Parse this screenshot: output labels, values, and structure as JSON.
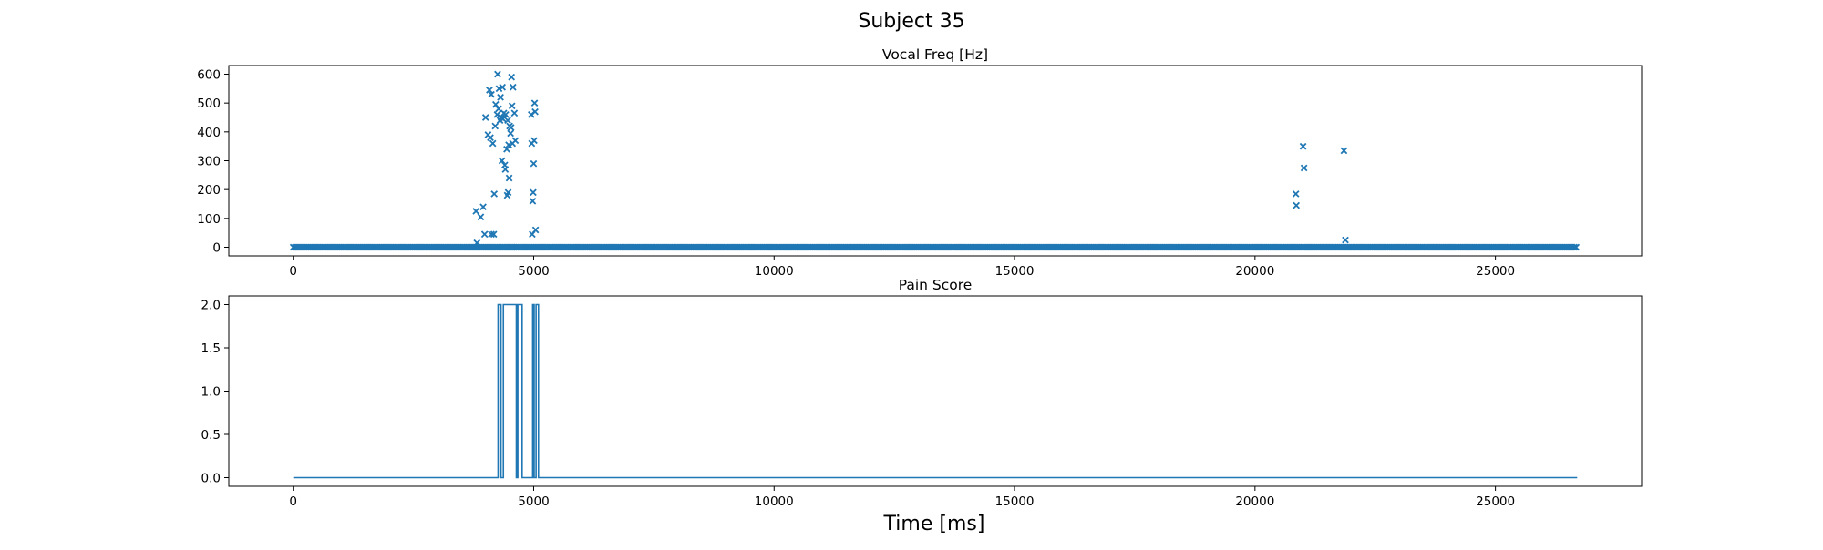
{
  "figure": {
    "suptitle": "Subject 35",
    "xlabel": "Time [ms]"
  },
  "colors": {
    "series": "#1f77b4",
    "axes": "#000000",
    "background": "#ffffff"
  },
  "chart_data": [
    {
      "type": "scatter",
      "title": "Vocal Freq [Hz]",
      "marker": "x",
      "xlim": [
        -1340,
        28040
      ],
      "ylim": [
        -30,
        630
      ],
      "xticks": [
        0,
        5000,
        10000,
        15000,
        20000,
        25000
      ],
      "yticks": [
        0,
        100,
        200,
        300,
        400,
        500,
        600
      ],
      "grid": false,
      "baseline": {
        "y": 0,
        "x_start": 0,
        "x_end": 26700,
        "step": 40
      },
      "points": [
        [
          3800,
          125
        ],
        [
          3900,
          105
        ],
        [
          3950,
          140
        ],
        [
          3980,
          45
        ],
        [
          4050,
          390
        ],
        [
          4080,
          545
        ],
        [
          4100,
          380
        ],
        [
          4120,
          530
        ],
        [
          4150,
          360
        ],
        [
          4170,
          45
        ],
        [
          4180,
          185
        ],
        [
          4200,
          420
        ],
        [
          4210,
          495
        ],
        [
          4240,
          460
        ],
        [
          4250,
          600
        ],
        [
          4270,
          480
        ],
        [
          4280,
          550
        ],
        [
          4300,
          440
        ],
        [
          4310,
          520
        ],
        [
          4320,
          450
        ],
        [
          4340,
          300
        ],
        [
          4350,
          555
        ],
        [
          4360,
          445
        ],
        [
          4380,
          465
        ],
        [
          4400,
          285
        ],
        [
          4410,
          270
        ],
        [
          4420,
          460
        ],
        [
          4440,
          340
        ],
        [
          4450,
          180
        ],
        [
          4460,
          440
        ],
        [
          4470,
          190
        ],
        [
          4480,
          355
        ],
        [
          4490,
          240
        ],
        [
          4500,
          420
        ],
        [
          4520,
          395
        ],
        [
          4530,
          415
        ],
        [
          4540,
          590
        ],
        [
          4550,
          490
        ],
        [
          4560,
          360
        ],
        [
          4570,
          555
        ],
        [
          4600,
          465
        ],
        [
          4620,
          370
        ],
        [
          4000,
          450
        ],
        [
          3820,
          15
        ],
        [
          4120,
          45
        ],
        [
          4550,
          0
        ],
        [
          4950,
          460
        ],
        [
          4960,
          360
        ],
        [
          4980,
          160
        ],
        [
          4990,
          190
        ],
        [
          5000,
          290
        ],
        [
          5010,
          370
        ],
        [
          5020,
          500
        ],
        [
          5030,
          470
        ],
        [
          4970,
          45
        ],
        [
          5040,
          60
        ],
        [
          20850,
          185
        ],
        [
          20860,
          145
        ],
        [
          21000,
          350
        ],
        [
          21020,
          275
        ],
        [
          21850,
          335
        ],
        [
          21880,
          25
        ]
      ]
    },
    {
      "type": "line",
      "title": "Pain Score",
      "drawstyle": "steps",
      "xlim": [
        -1340,
        28040
      ],
      "ylim": [
        -0.1,
        2.1
      ],
      "xticks": [
        0,
        5000,
        10000,
        15000,
        20000,
        25000
      ],
      "yticks": [
        0.0,
        0.5,
        1.0,
        1.5,
        2.0
      ],
      "ytick_labels": [
        "0.0",
        "0.5",
        "1.0",
        "1.5",
        "2.0"
      ],
      "grid": false,
      "x": [
        0,
        4260,
        4260,
        4320,
        4320,
        4370,
        4370,
        4640,
        4640,
        4670,
        4670,
        4760,
        4760,
        4980,
        4980,
        5010,
        5010,
        5050,
        5050,
        5100,
        5100,
        26700
      ],
      "y": [
        0,
        0,
        2,
        2,
        0,
        0,
        2,
        2,
        0,
        0,
        2,
        2,
        0,
        0,
        2,
        2,
        0,
        0,
        2,
        2,
        0,
        0
      ]
    }
  ]
}
